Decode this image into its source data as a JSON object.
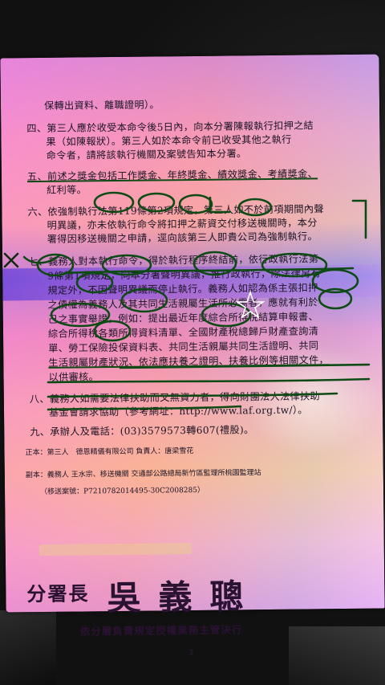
{
  "document": {
    "lines": [
      "保轉出資料、離職證明）。",
      "四、第三人應於收受本命令後5日內，向本分署陳報執行扣押之結",
      "果（如陳報狀）。第三人如於本命令前已收受其他之執行",
      "命令者，請將該執行機關及案號告知本分署。",
      "五、前述之獎金包括工作獎金、年終獎金、績效獎金、考績獎金、",
      "紅利等。",
      "六、依強制執行法第119條第2項規定，第三人如不於前項期間內聲",
      "明異議，亦未依執行命令將扣押之薪資交付移送機關時，本分",
      "署得因移送機關之申請，逕向該第三人即貴公司為強制執行。",
      "七、義務人對本執行命令，得於執行程序終結前，依行政執行法第",
      "9條第1項規定，向本分署聲明異議，推行政執行，除法律另有",
      "規定外，不因聲明異議而停止執行。義務人如認為係主張扣押",
      "之債權為義務人及其共同生活親屬生活所必需者，應就有利於",
      "己之事實舉證，例如：提出最近年度綜合所得稅結算申報書、",
      "綜合所得稅各類所得資料清單、全國財產稅總歸戶財產查詢清",
      "單、勞工保險投保資料表、共同生活親屬共同生活證明、共同",
      "生活親屬財產狀況、依法應扶養之證明、扶養比例等相關文件，",
      "以供審核。",
      "八、義務人如需要法律扶助而又無資力者，得向財團法人法律扶助",
      "基金會請求協助（參考網址：http://www.laf.org.tw/）。",
      "九、承辦人及電話：(03)3579573轉607(禮股)。"
    ],
    "recipients": [
      "正本：第三人　德恩精儀有限公司 負責人：唐梁雪花",
      "副本：義務人 王水宗、移送機關 交通部公路總局新竹區監理所桃園監理站",
      "（移送案號：P7210782014495-30C2008285）"
    ],
    "signature": {
      "title": "分署長",
      "name": "吳義聰",
      "delegation": "依分層負責規定授權業務主管決行"
    },
    "page_number": "2"
  },
  "colors": {
    "ink_text": "#1d1526",
    "marker_green": "#0e4b14",
    "marker_dark": "#122a10"
  }
}
